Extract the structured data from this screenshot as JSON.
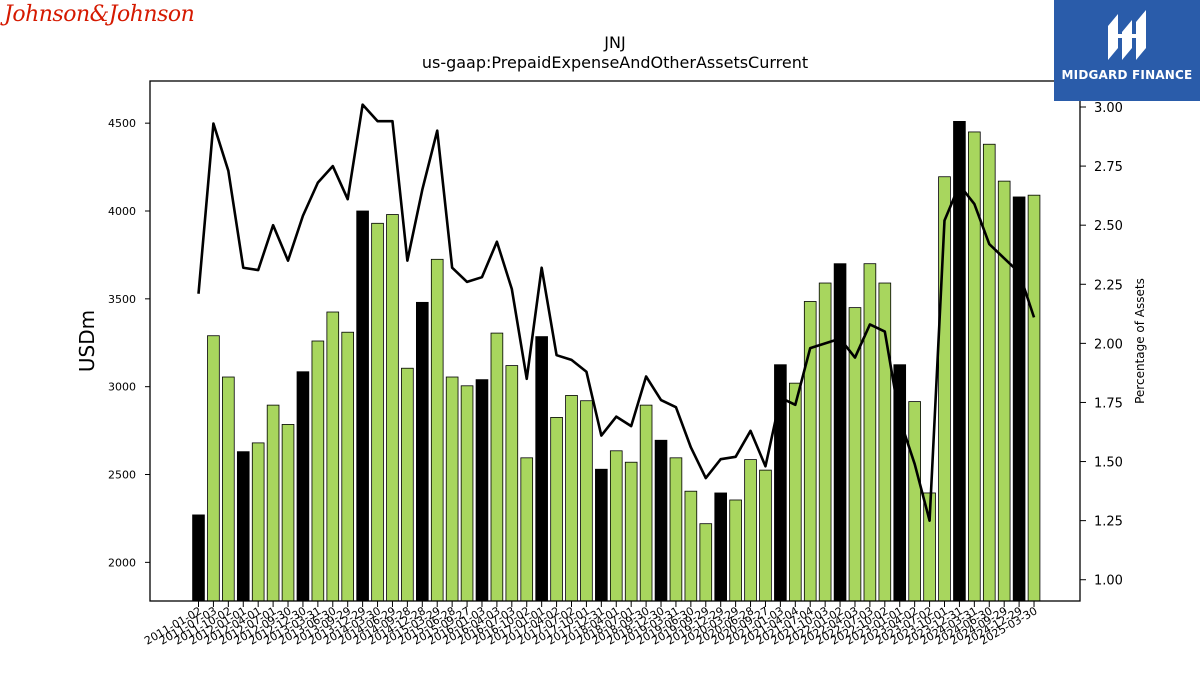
{
  "branding": {
    "company_logo_text": "Johnson&Johnson",
    "badge_text": "MIDGARD FINANCE",
    "badge_color": "#2a5caa",
    "logo_color": "#d51900"
  },
  "chart_data": {
    "type": "bar",
    "title": "JNJ",
    "subtitle": "us-gaap:PrepaidExpenseAndOtherAssetsCurrent",
    "ylabel": "USDm",
    "y2label": "Percentage of Assets",
    "ylim": [
      1780,
      4740
    ],
    "y2lim": [
      0.91,
      3.11
    ],
    "yticks": [
      2000,
      2500,
      3000,
      3500,
      4000,
      4500
    ],
    "y2ticks": [
      1.0,
      1.25,
      1.5,
      1.75,
      2.0,
      2.25,
      2.5,
      2.75,
      3.0
    ],
    "y2tick_labels": [
      "1.00",
      "1.25",
      "1.50",
      "1.75",
      "2.00",
      "2.25",
      "2.50",
      "2.75",
      "3.00"
    ],
    "colors": {
      "annual_bar": "#000000",
      "quarter_bar": "#a8d65e",
      "line": "#000000"
    },
    "categories": [
      "2011-01-02",
      "2011-07-03",
      "2011-10-02",
      "2012-01-01",
      "2012-04-01",
      "2012-07-01",
      "2012-09-30",
      "2012-12-30",
      "2013-03-31",
      "2013-06-30",
      "2013-09-29",
      "2013-12-29",
      "2014-03-30",
      "2014-06-29",
      "2014-09-28",
      "2014-12-28",
      "2015-03-29",
      "2015-06-28",
      "2015-09-27",
      "2016-01-03",
      "2016-04-03",
      "2016-07-03",
      "2016-10-02",
      "2017-01-01",
      "2017-04-02",
      "2017-07-02",
      "2017-10-01",
      "2017-12-31",
      "2018-04-01",
      "2018-07-01",
      "2018-09-30",
      "2018-12-30",
      "2019-03-31",
      "2019-06-30",
      "2019-09-29",
      "2019-12-29",
      "2020-03-29",
      "2020-06-28",
      "2020-09-27",
      "2021-01-03",
      "2021-04-04",
      "2021-07-04",
      "2021-10-03",
      "2022-01-02",
      "2022-04-03",
      "2022-07-03",
      "2022-10-02",
      "2023-01-01",
      "2023-04-02",
      "2023-07-02",
      "2023-10-01",
      "2023-12-31",
      "2024-03-31",
      "2024-06-30",
      "2024-09-29",
      "2024-12-29",
      "2025-03-30"
    ],
    "series": [
      {
        "values": [
          2270,
          3290,
          3055,
          2630,
          2680,
          2895,
          2785,
          3085,
          3260,
          3425,
          3310,
          4000,
          3930,
          3980,
          3105,
          3480,
          3725,
          3055,
          3005,
          3040,
          3305,
          3120,
          2595,
          3285,
          2825,
          2950,
          2920,
          2530,
          2635,
          2570,
          2895,
          2695,
          2595,
          2405,
          2220,
          2395,
          2355,
          2585,
          2525,
          3125,
          3020,
          3485,
          3590,
          3700,
          3450,
          3700,
          3590,
          3125,
          2915,
          2395,
          4195,
          4510,
          4450,
          4380,
          4170,
          4080,
          4090
        ],
        "annual": [
          true,
          false,
          false,
          true,
          false,
          false,
          false,
          true,
          false,
          false,
          false,
          true,
          false,
          false,
          false,
          true,
          false,
          false,
          false,
          true,
          false,
          false,
          false,
          true,
          false,
          false,
          false,
          true,
          false,
          false,
          false,
          true,
          false,
          false,
          false,
          true,
          false,
          false,
          false,
          true,
          false,
          false,
          false,
          true,
          false,
          false,
          false,
          true,
          false,
          false,
          false,
          true,
          false,
          false,
          false,
          true,
          false
        ]
      },
      {
        "axis": "right",
        "values": [
          2.21,
          2.93,
          2.73,
          2.32,
          2.31,
          2.5,
          2.35,
          2.54,
          2.68,
          2.75,
          2.61,
          3.01,
          2.94,
          2.94,
          2.35,
          2.65,
          2.9,
          2.32,
          2.26,
          2.28,
          2.43,
          2.23,
          1.85,
          2.32,
          1.95,
          1.93,
          1.88,
          1.61,
          1.69,
          1.65,
          1.86,
          1.76,
          1.73,
          1.56,
          1.43,
          1.51,
          1.52,
          1.63,
          1.48,
          1.77,
          1.74,
          1.98,
          2.0,
          2.02,
          1.94,
          2.08,
          2.05,
          1.68,
          1.49,
          1.25,
          2.52,
          2.67,
          2.59,
          2.42,
          2.36,
          2.3,
          2.11
        ]
      }
    ]
  }
}
